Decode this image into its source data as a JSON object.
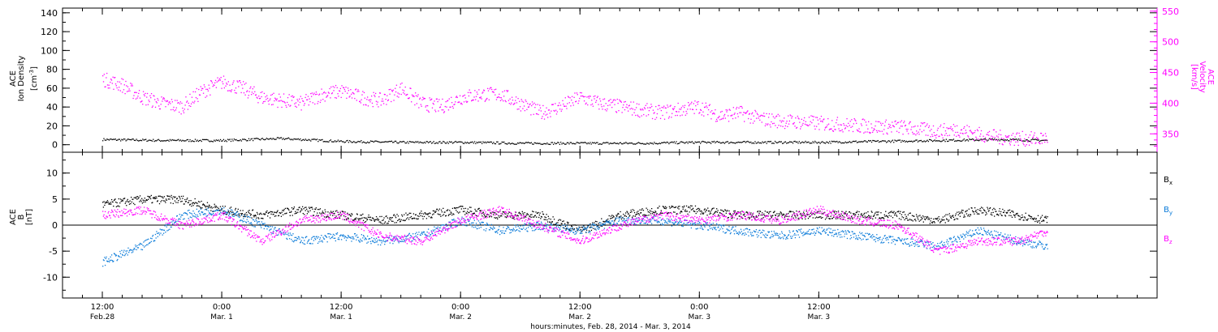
{
  "chart_data": [
    {
      "type": "scatter",
      "panel": "top",
      "left_axis": {
        "label_lines": [
          "ACE",
          "Ion Density"
        ],
        "unit_text": "[cm",
        "unit_sup": "-3",
        "unit_close": "]",
        "ylim": [
          -8,
          145
        ],
        "ticks": [
          0,
          20,
          40,
          60,
          80,
          100,
          120,
          140
        ],
        "tick_labels": [
          "0",
          "20",
          "40",
          "60",
          "80",
          "100",
          "120",
          "140"
        ],
        "color": "#000000"
      },
      "right_axis": {
        "label_lines": [
          "ACE",
          "Velocity",
          "[km/s]"
        ],
        "ylim": [
          320,
          555
        ],
        "ticks": [
          350,
          400,
          450,
          500,
          550
        ],
        "tick_labels": [
          "350",
          "400",
          "450",
          "500",
          "550"
        ],
        "color": "#ff00ff"
      },
      "series": [
        {
          "axis": "left",
          "color": "#000000",
          "x": [
            0,
            6,
            12,
            18,
            24,
            30,
            36,
            42,
            48,
            54,
            60,
            66,
            72,
            78,
            84,
            90,
            95
          ],
          "y": [
            6,
            5,
            5,
            7,
            4,
            3,
            3,
            2,
            2,
            2,
            3,
            3,
            3,
            4,
            5,
            6,
            5
          ]
        },
        {
          "axis": "right",
          "color": "#ff00ff",
          "x": [
            0,
            2,
            4,
            6,
            8,
            10,
            12,
            14,
            16,
            18,
            20,
            22,
            24,
            26,
            28,
            30,
            32,
            34,
            36,
            38,
            40,
            42,
            44,
            46,
            48,
            50,
            52,
            54,
            56,
            58,
            60,
            62,
            64,
            66,
            68,
            70,
            72,
            74,
            76,
            78,
            80,
            82,
            84,
            86,
            88,
            90,
            92,
            94,
            95
          ],
          "y": [
            440,
            430,
            410,
            400,
            395,
            420,
            435,
            425,
            410,
            405,
            400,
            415,
            420,
            410,
            405,
            425,
            400,
            395,
            410,
            415,
            415,
            400,
            385,
            395,
            410,
            400,
            395,
            390,
            385,
            390,
            395,
            380,
            385,
            375,
            372,
            370,
            368,
            366,
            364,
            362,
            362,
            358,
            355,
            358,
            350,
            345,
            343,
            342,
            345
          ]
        }
      ]
    },
    {
      "type": "scatter",
      "panel": "bottom",
      "left_axis": {
        "label_lines": [
          "ACE",
          "B",
          "[nT]"
        ],
        "ylim": [
          -14,
          14
        ],
        "ticks": [
          -10,
          -5,
          0,
          5,
          10
        ],
        "tick_labels": [
          "-10",
          "-5",
          "0",
          "5",
          "10"
        ],
        "color": "#000000"
      },
      "series": [
        {
          "name": "B",
          "subscript": "x",
          "color": "#000000",
          "x": [
            0,
            4,
            8,
            12,
            16,
            20,
            24,
            28,
            32,
            36,
            40,
            44,
            48,
            52,
            56,
            60,
            64,
            68,
            72,
            76,
            80,
            84,
            88,
            92,
            95
          ],
          "y": [
            4,
            5,
            5,
            3,
            2,
            3,
            2,
            1,
            2,
            3,
            2,
            2,
            -1,
            2,
            3,
            3,
            2,
            2,
            2,
            2,
            2,
            1,
            3,
            2,
            1
          ]
        },
        {
          "name": "B",
          "subscript": "y",
          "color": "#0b7bd9",
          "x": [
            0,
            4,
            8,
            12,
            16,
            20,
            24,
            28,
            32,
            36,
            40,
            44,
            48,
            52,
            56,
            60,
            64,
            68,
            72,
            76,
            80,
            84,
            88,
            92,
            95
          ],
          "y": [
            -7,
            -4,
            2,
            3,
            0,
            -3,
            -2,
            -3,
            -2,
            1,
            -1,
            0,
            -1,
            1,
            1,
            0,
            -1,
            -2,
            -1,
            -2,
            -3,
            -4,
            -1,
            -3,
            -4
          ]
        },
        {
          "name": "B",
          "subscript": "z",
          "color": "#ff00ff",
          "x": [
            0,
            4,
            8,
            12,
            16,
            20,
            24,
            28,
            32,
            36,
            40,
            44,
            48,
            52,
            56,
            60,
            64,
            68,
            72,
            76,
            80,
            84,
            88,
            92,
            95
          ],
          "y": [
            2,
            3,
            0,
            2,
            -3,
            1,
            2,
            -2,
            -3,
            1,
            3,
            0,
            -3,
            0,
            2,
            1,
            2,
            1,
            3,
            1,
            0,
            -5,
            -3,
            -3,
            -1
          ]
        }
      ]
    }
  ],
  "time_axis": {
    "xlim": [
      -4,
      106
    ],
    "major_ticks": [
      {
        "x": 0,
        "time": "12:00",
        "date": "Feb.28"
      },
      {
        "x": 12,
        "time": "0:00",
        "date": "Mar. 1"
      },
      {
        "x": 24,
        "time": "12:00",
        "date": "Mar. 1"
      },
      {
        "x": 36,
        "time": "0:00",
        "date": "Mar. 2"
      },
      {
        "x": 48,
        "time": "12:00",
        "date": "Mar. 2"
      },
      {
        "x": 60,
        "time": "0:00",
        "date": "Mar. 3"
      },
      {
        "x": 72,
        "time": "12:00",
        "date": "Mar. 3"
      }
    ],
    "minor_tick_step": 2,
    "caption": "hours:minutes, Feb. 28, 2014 - Mar.  3, 2014"
  }
}
